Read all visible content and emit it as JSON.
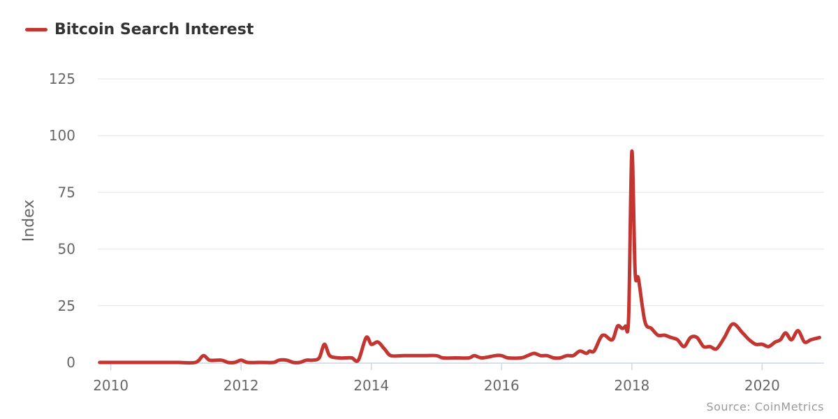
{
  "legend": {
    "label": "Bitcoin Search Interest",
    "color": "#c23531"
  },
  "source": "Source: CoinMetrics",
  "chart_data": {
    "type": "line",
    "title": "",
    "ylabel": "Index",
    "xlabel": "",
    "ylim": [
      0,
      125
    ],
    "xlim": [
      2009.8,
      2020.95
    ],
    "y_ticks": [
      "0",
      "25",
      "50",
      "75",
      "100",
      "125"
    ],
    "x_ticks": [
      "2010",
      "2012",
      "2014",
      "2016",
      "2018",
      "2020"
    ],
    "grid": "horizontal",
    "colors": {
      "line": "#c23531",
      "grid": "#e6e6e6",
      "axis": "#ccd6eb",
      "tick_label": "#666666"
    },
    "series": [
      {
        "name": "Bitcoin Search Interest",
        "x": [
          2009.83,
          2010.0,
          2010.5,
          2011.0,
          2011.3,
          2011.42,
          2011.52,
          2011.7,
          2011.8,
          2011.9,
          2012.0,
          2012.1,
          2012.3,
          2012.5,
          2012.58,
          2012.7,
          2012.8,
          2012.9,
          2013.0,
          2013.1,
          2013.2,
          2013.28,
          2013.36,
          2013.5,
          2013.6,
          2013.7,
          2013.8,
          2013.92,
          2014.0,
          2014.1,
          2014.2,
          2014.3,
          2014.5,
          2014.8,
          2015.0,
          2015.1,
          2015.3,
          2015.5,
          2015.58,
          2015.7,
          2015.9,
          2016.0,
          2016.1,
          2016.3,
          2016.4,
          2016.5,
          2016.6,
          2016.7,
          2016.8,
          2016.9,
          2017.0,
          2017.1,
          2017.2,
          2017.3,
          2017.35,
          2017.42,
          2017.52,
          2017.58,
          2017.7,
          2017.78,
          2017.85,
          2017.9,
          2017.95,
          2018.0,
          2018.05,
          2018.1,
          2018.2,
          2018.3,
          2018.4,
          2018.5,
          2018.6,
          2018.7,
          2018.8,
          2018.9,
          2019.0,
          2019.1,
          2019.2,
          2019.3,
          2019.42,
          2019.55,
          2019.7,
          2019.8,
          2019.9,
          2020.0,
          2020.1,
          2020.2,
          2020.28,
          2020.36,
          2020.45,
          2020.55,
          2020.65,
          2020.75,
          2020.88
        ],
        "values": [
          0,
          0,
          0,
          0,
          0,
          3,
          1,
          1,
          0,
          0,
          1,
          0,
          0,
          0,
          1,
          1,
          0,
          0,
          1,
          1,
          2,
          8,
          3,
          2,
          2,
          2,
          1,
          11,
          8,
          9,
          6,
          3,
          3,
          3,
          3,
          2,
          2,
          2,
          3,
          2,
          3,
          3,
          2,
          2,
          3,
          4,
          3,
          3,
          2,
          2,
          3,
          3,
          5,
          4,
          5,
          5,
          11,
          12,
          10,
          16,
          15,
          16,
          20,
          93,
          40,
          37,
          18,
          15,
          12,
          12,
          11,
          10,
          7,
          11,
          11,
          7,
          7,
          6,
          11,
          17,
          13,
          10,
          8,
          8,
          7,
          9,
          10,
          13,
          10,
          14,
          9,
          10,
          11
        ]
      }
    ]
  }
}
